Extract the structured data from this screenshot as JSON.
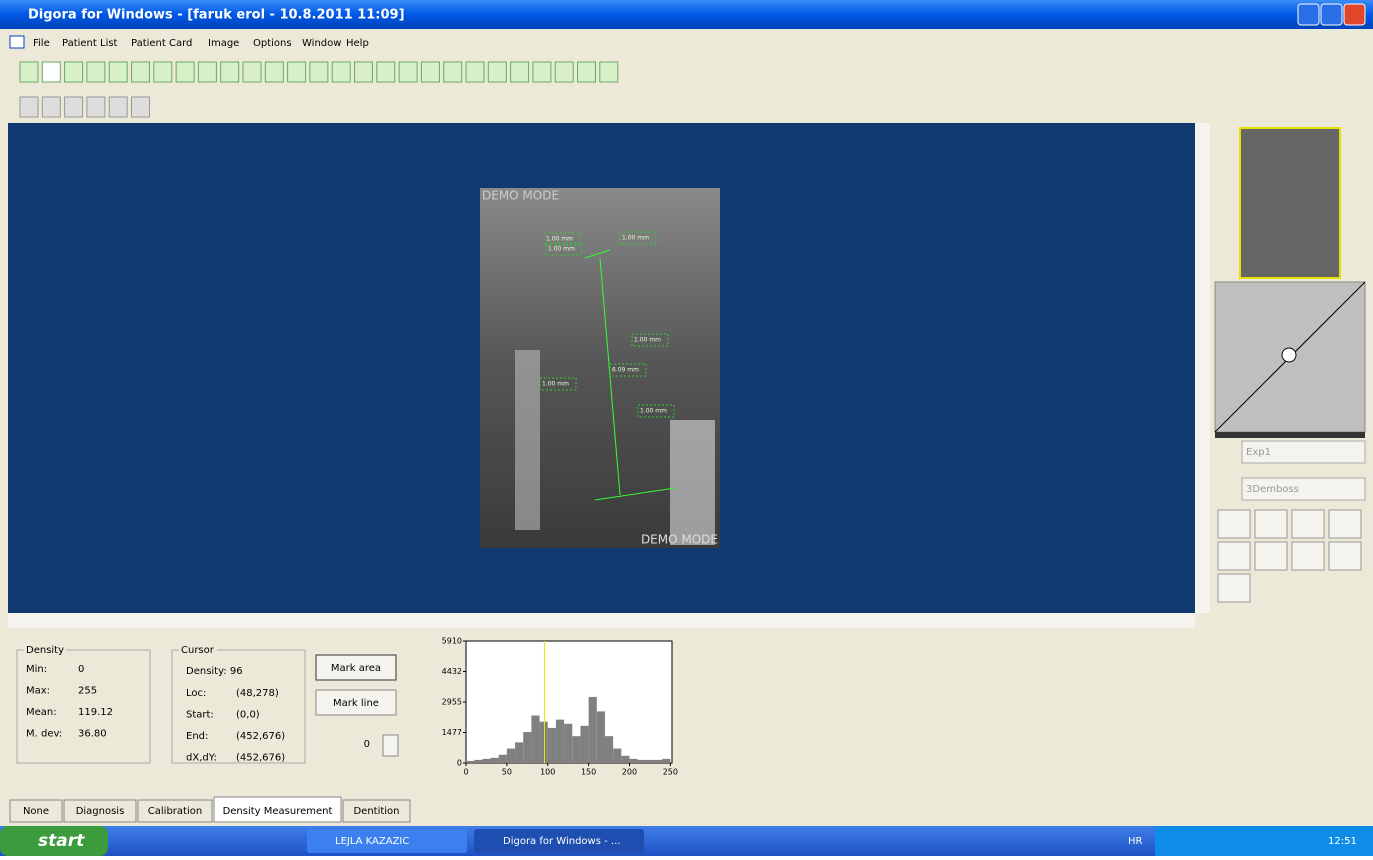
{
  "window": {
    "title": "Digora for Windows - [faruk erol - 10.8.2011 11:09]"
  },
  "menu": [
    "File",
    "Patient List",
    "Patient Card",
    "Image",
    "Options",
    "Window",
    "Help"
  ],
  "image": {
    "watermark_top": "DEMO MODE",
    "watermark_bottom": "DEMO MODE",
    "annotations": [
      "1.00 mm",
      "1.00 mm",
      "1.00 mm",
      "1.00 mm",
      "6.09 mm",
      "1.00 mm",
      "1.00 mm"
    ]
  },
  "side_panel": {
    "filter1": "Exp1",
    "filter2": "3Demboss"
  },
  "density": {
    "title": "Density",
    "rows": [
      [
        "Min:",
        "0"
      ],
      [
        "Max:",
        "255"
      ],
      [
        "Mean:",
        "119.12"
      ],
      [
        "M. dev:",
        "36.80"
      ]
    ]
  },
  "cursor": {
    "title": "Cursor",
    "density": "Density: 96",
    "rows": [
      [
        "Loc:",
        "(48,278)"
      ],
      [
        "Start:",
        "(0,0)"
      ],
      [
        "End:",
        "(452,676)"
      ],
      [
        "dX,dY:",
        "(452,676)"
      ]
    ]
  },
  "buttons": [
    "Mark area",
    "Mark line"
  ],
  "spinner": "0",
  "histogram": {
    "type": "histogram",
    "color": "#808080",
    "cursor_color": "#e8e800",
    "bins": [
      0,
      10,
      20,
      30,
      40,
      50,
      60,
      70,
      80,
      90,
      100,
      110,
      120,
      130,
      140,
      150,
      160,
      170,
      180,
      190,
      200,
      210,
      220,
      230,
      240,
      250
    ],
    "counts": [
      100,
      150,
      200,
      250,
      400,
      700,
      1000,
      1500,
      2300,
      2000,
      1700,
      2100,
      1900,
      1300,
      1800,
      3200,
      2500,
      1300,
      700,
      350,
      200,
      150,
      150,
      150,
      200
    ],
    "cursor": 96,
    "xlim": [
      0,
      252
    ],
    "ylim": [
      0,
      5910
    ],
    "xticks": [
      0,
      50,
      100,
      150,
      200,
      250
    ],
    "yticks": [
      0,
      1477,
      2955,
      4432,
      5910
    ]
  },
  "tabs": [
    "None",
    "Diagnosis",
    "Calibration",
    "Density Measurement",
    "Dentition"
  ],
  "taskbar": {
    "start": "start",
    "items": [
      "LEJLA KAZAZIC",
      "Digora for Windows - ..."
    ],
    "language": "HR",
    "clock": "12:51"
  }
}
